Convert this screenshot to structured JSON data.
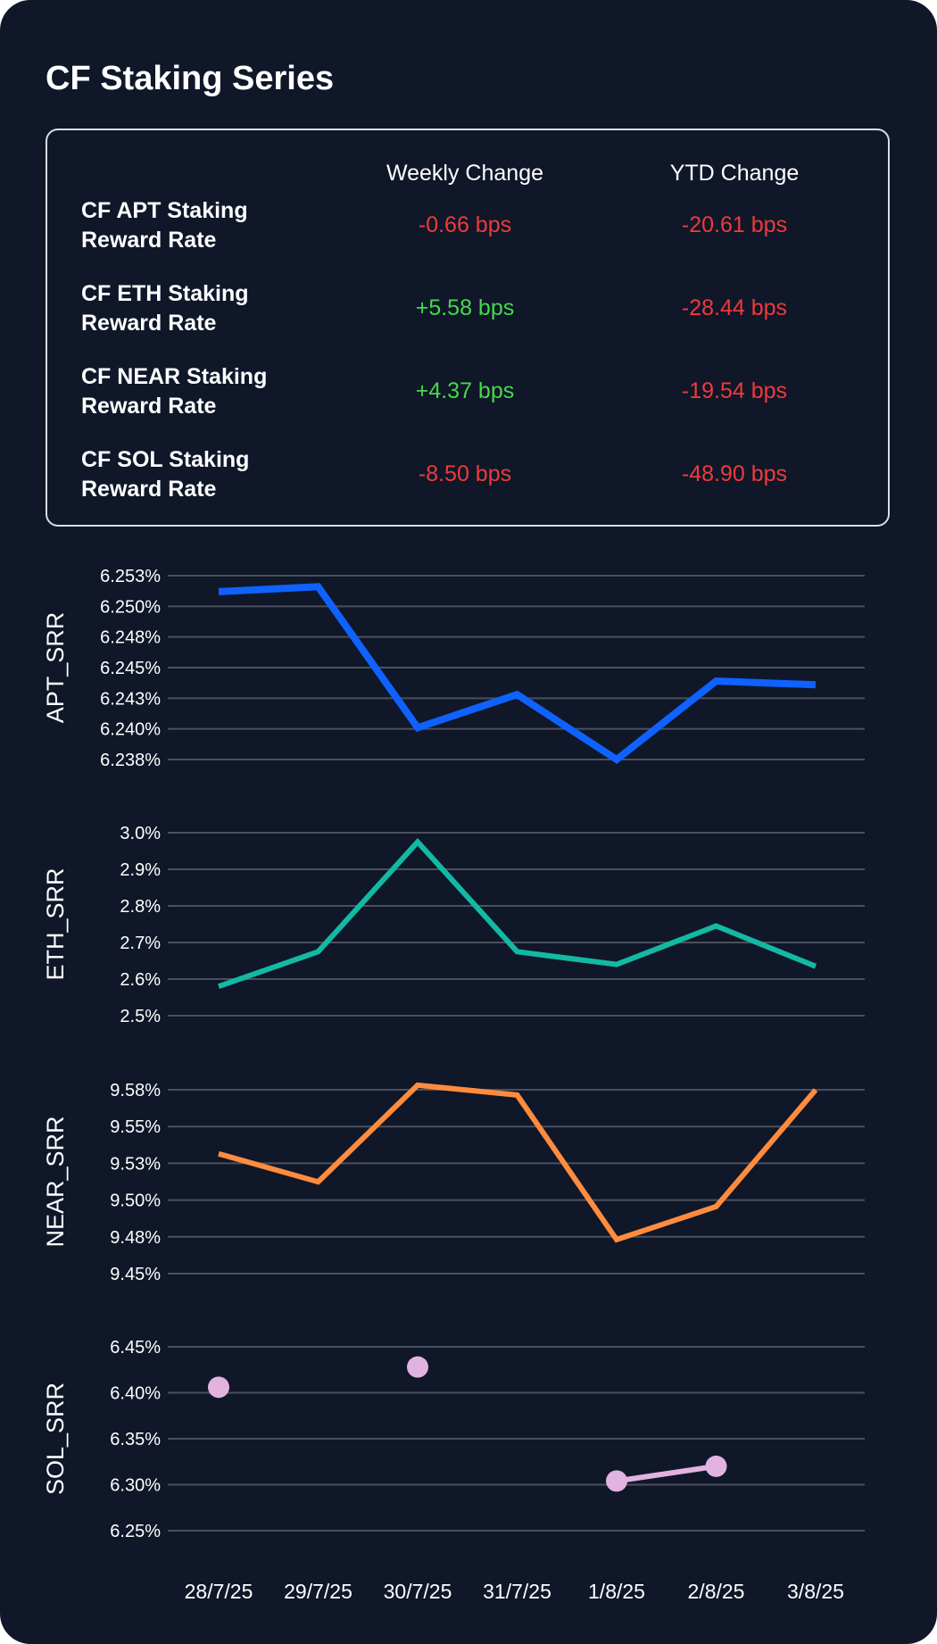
{
  "title": "CF Staking Series",
  "summary": {
    "headers": {
      "weekly": "Weekly Change",
      "ytd": "YTD Change"
    },
    "rows": [
      {
        "label_line1": "CF APT Staking",
        "label_line2": "Reward Rate",
        "weekly": "-0.66 bps",
        "ytd": "-20.61 bps"
      },
      {
        "label_line1": "CF ETH Staking",
        "label_line2": "Reward Rate",
        "weekly": "+5.58 bps",
        "ytd": "-28.44 bps"
      },
      {
        "label_line1": "CF NEAR Staking",
        "label_line2": "Reward Rate",
        "weekly": "+4.37 bps",
        "ytd": "-19.54 bps"
      },
      {
        "label_line1": "CF SOL Staking",
        "label_line2": "Reward Rate",
        "weekly": "-8.50 bps",
        "ytd": "-48.90 bps"
      }
    ]
  },
  "colors": {
    "background": "#0f1729",
    "grid": "#4b505c",
    "text": "#ffffff",
    "negative": "#f03a3a",
    "positive": "#45d94a"
  },
  "chart_data": [
    {
      "type": "line",
      "ylabel": "APT_SRR",
      "color": "#0f62fe",
      "x": [
        "28/7/25",
        "29/7/25",
        "30/7/25",
        "31/7/25",
        "1/8/25",
        "2/8/25",
        "3/8/25"
      ],
      "values": [
        6.2512,
        6.2516,
        6.2401,
        6.2428,
        6.2375,
        6.2439,
        6.2436
      ],
      "yticks": [
        "6.238%",
        "6.240%",
        "6.243%",
        "6.245%",
        "6.248%",
        "6.250%",
        "6.253%"
      ],
      "ylim": [
        6.2375,
        6.2525
      ]
    },
    {
      "type": "line",
      "ylabel": "ETH_SRR",
      "color": "#13b9a2",
      "x": [
        "28/7/25",
        "29/7/25",
        "30/7/25",
        "31/7/25",
        "1/8/25",
        "2/8/25",
        "3/8/25"
      ],
      "values": [
        2.58,
        2.675,
        2.975,
        2.675,
        2.64,
        2.745,
        2.635
      ],
      "yticks": [
        "2.5%",
        "2.6%",
        "2.7%",
        "2.8%",
        "2.9%",
        "3.0%"
      ],
      "ylim": [
        2.5,
        3.0
      ]
    },
    {
      "type": "line",
      "ylabel": "NEAR_SRR",
      "color": "#ff8c3e",
      "x": [
        "28/7/25",
        "29/7/25",
        "30/7/25",
        "31/7/25",
        "1/8/25",
        "2/8/25",
        "3/8/25"
      ],
      "values": [
        9.5315,
        9.5124,
        9.5781,
        9.5714,
        9.4731,
        9.4956,
        9.5749
      ],
      "yticks": [
        "9.45%",
        "9.48%",
        "9.50%",
        "9.53%",
        "9.55%",
        "9.58%"
      ],
      "ylim": [
        9.45,
        9.575
      ]
    },
    {
      "type": "scatter",
      "ylabel": "SOL_SRR",
      "color": "#e2b2e0",
      "x": [
        "28/7/25",
        "29/7/25",
        "30/7/25",
        "31/7/25",
        "1/8/25",
        "2/8/25",
        "3/8/25"
      ],
      "values": [
        6.406,
        null,
        6.428,
        null,
        6.304,
        6.32,
        null
      ],
      "connected_pairs": [
        [
          4,
          5
        ]
      ],
      "yticks": [
        "6.25%",
        "6.30%",
        "6.35%",
        "6.40%",
        "6.45%"
      ],
      "ylim": [
        6.25,
        6.45
      ]
    }
  ]
}
